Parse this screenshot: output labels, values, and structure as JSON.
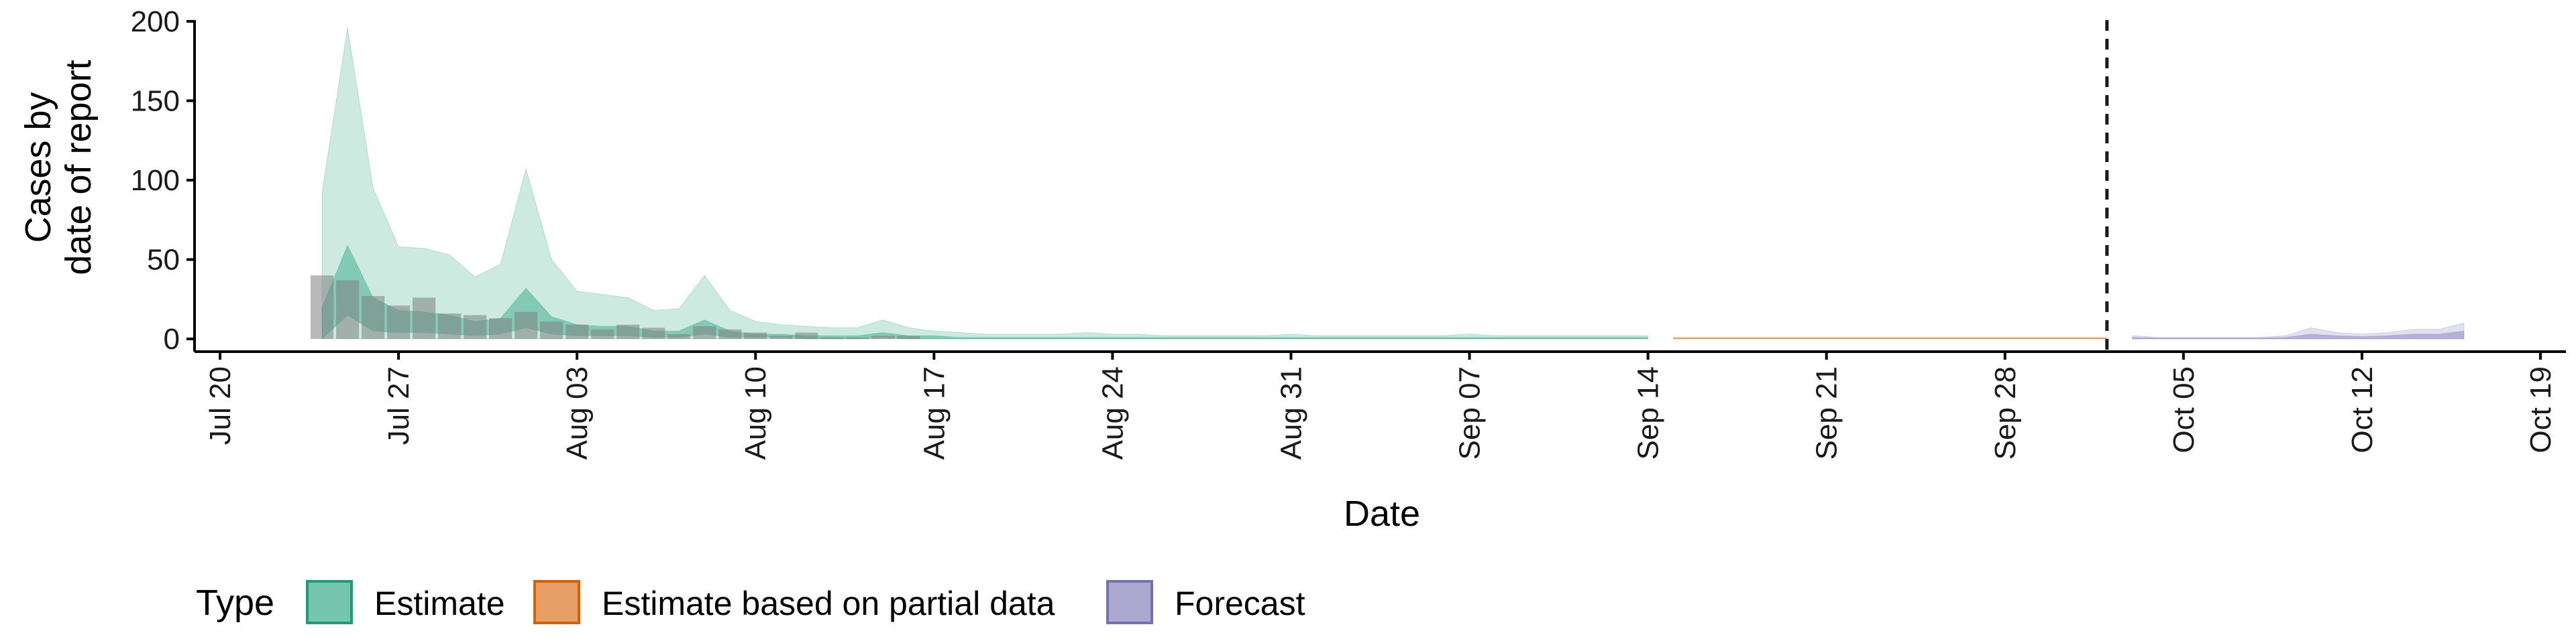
{
  "chart_data": {
    "type": "area",
    "title": "",
    "xlabel": "Date",
    "ylabel_lines": [
      "Cases by",
      "date of report"
    ],
    "x_ticks": [
      {
        "date": "2020-07-20",
        "label": "Jul 20"
      },
      {
        "date": "2020-07-27",
        "label": "Jul 27"
      },
      {
        "date": "2020-08-03",
        "label": "Aug 03"
      },
      {
        "date": "2020-08-10",
        "label": "Aug 10"
      },
      {
        "date": "2020-08-17",
        "label": "Aug 17"
      },
      {
        "date": "2020-08-24",
        "label": "Aug 24"
      },
      {
        "date": "2020-08-31",
        "label": "Aug 31"
      },
      {
        "date": "2020-09-07",
        "label": "Sep 07"
      },
      {
        "date": "2020-09-14",
        "label": "Sep 14"
      },
      {
        "date": "2020-09-21",
        "label": "Sep 21"
      },
      {
        "date": "2020-09-28",
        "label": "Sep 28"
      },
      {
        "date": "2020-10-05",
        "label": "Oct 05"
      },
      {
        "date": "2020-10-12",
        "label": "Oct 12"
      },
      {
        "date": "2020-10-19",
        "label": "Oct 19"
      }
    ],
    "y_ticks": [
      0,
      50,
      100,
      150,
      200
    ],
    "xlim": [
      "2020-07-19",
      "2020-10-20"
    ],
    "ylim": [
      -8,
      205
    ],
    "vline_date": "2020-10-02",
    "colors": {
      "estimate": "#1b9e77",
      "partial": "#d95f02",
      "forecast": "#7570b3",
      "observed": "#808080"
    },
    "legend": {
      "position": "bottom",
      "title": "Type",
      "items": [
        {
          "key": "estimate",
          "label": "Estimate"
        },
        {
          "key": "partial",
          "label": "Estimate based on partial data"
        },
        {
          "key": "forecast",
          "label": "Forecast"
        }
      ]
    },
    "observed": [
      {
        "date": "2020-07-24",
        "value": 40
      },
      {
        "date": "2020-07-25",
        "value": 37
      },
      {
        "date": "2020-07-26",
        "value": 27
      },
      {
        "date": "2020-07-27",
        "value": 21
      },
      {
        "date": "2020-07-28",
        "value": 26
      },
      {
        "date": "2020-07-29",
        "value": 16
      },
      {
        "date": "2020-07-30",
        "value": 15
      },
      {
        "date": "2020-07-31",
        "value": 13
      },
      {
        "date": "2020-08-01",
        "value": 17
      },
      {
        "date": "2020-08-02",
        "value": 11
      },
      {
        "date": "2020-08-03",
        "value": 9
      },
      {
        "date": "2020-08-04",
        "value": 6
      },
      {
        "date": "2020-08-05",
        "value": 9
      },
      {
        "date": "2020-08-06",
        "value": 7
      },
      {
        "date": "2020-08-07",
        "value": 3
      },
      {
        "date": "2020-08-08",
        "value": 8
      },
      {
        "date": "2020-08-09",
        "value": 6
      },
      {
        "date": "2020-08-10",
        "value": 4
      },
      {
        "date": "2020-08-11",
        "value": 2
      },
      {
        "date": "2020-08-12",
        "value": 4
      },
      {
        "date": "2020-08-13",
        "value": 1
      },
      {
        "date": "2020-08-14",
        "value": 1
      },
      {
        "date": "2020-08-15",
        "value": 2
      },
      {
        "date": "2020-08-16",
        "value": 2
      }
    ],
    "series": [
      {
        "key": "estimate",
        "dates": [
          "2020-07-24",
          "2020-07-25",
          "2020-07-26",
          "2020-07-27",
          "2020-07-28",
          "2020-07-29",
          "2020-07-30",
          "2020-07-31",
          "2020-08-01",
          "2020-08-02",
          "2020-08-03",
          "2020-08-04",
          "2020-08-05",
          "2020-08-06",
          "2020-08-07",
          "2020-08-08",
          "2020-08-09",
          "2020-08-10",
          "2020-08-11",
          "2020-08-12",
          "2020-08-13",
          "2020-08-14",
          "2020-08-15",
          "2020-08-16",
          "2020-08-17",
          "2020-08-18",
          "2020-08-19",
          "2020-08-20",
          "2020-08-21",
          "2020-08-22",
          "2020-08-23",
          "2020-08-24",
          "2020-08-25",
          "2020-08-26",
          "2020-08-27",
          "2020-08-28",
          "2020-08-29",
          "2020-08-30",
          "2020-08-31",
          "2020-09-01",
          "2020-09-02",
          "2020-09-03",
          "2020-09-04",
          "2020-09-05",
          "2020-09-06",
          "2020-09-07",
          "2020-09-08",
          "2020-09-09",
          "2020-09-10",
          "2020-09-11",
          "2020-09-12",
          "2020-09-13",
          "2020-09-14"
        ],
        "outer_upper": [
          92,
          196,
          95,
          58,
          57,
          53,
          39,
          47,
          107,
          50,
          30,
          28,
          26,
          18,
          19,
          40,
          18,
          11,
          9,
          8,
          7,
          7,
          12,
          7,
          5,
          4,
          3,
          3,
          3,
          3,
          4,
          3,
          3,
          2,
          2,
          2,
          2,
          2,
          3,
          2,
          2,
          2,
          2,
          2,
          2,
          3,
          2,
          2,
          2,
          2,
          2,
          2,
          2
        ],
        "outer_lower": [
          0,
          0,
          0,
          0,
          0,
          0,
          0,
          0,
          0,
          0,
          0,
          0,
          0,
          0,
          0,
          0,
          0,
          0,
          0,
          0,
          0,
          0,
          0,
          0,
          0,
          0,
          0,
          0,
          0,
          0,
          0,
          0,
          0,
          0,
          0,
          0,
          0,
          0,
          0,
          0,
          0,
          0,
          0,
          0,
          0,
          0,
          0,
          0,
          0,
          0,
          0,
          0,
          0
        ],
        "inner_upper": [
          20,
          59,
          26,
          18,
          17,
          15,
          11,
          13,
          32,
          14,
          9,
          8,
          8,
          5,
          5,
          12,
          5,
          3,
          3,
          2,
          2,
          2,
          4,
          2,
          2,
          1,
          1,
          1,
          1,
          1,
          1,
          1,
          1,
          1,
          1,
          1,
          1,
          1,
          1,
          1,
          1,
          1,
          1,
          1,
          1,
          1,
          1,
          1,
          1,
          1,
          1,
          1,
          1
        ],
        "inner_lower": [
          0,
          15,
          5,
          4,
          4,
          3,
          2,
          3,
          7,
          3,
          2,
          2,
          2,
          1,
          1,
          3,
          1,
          1,
          1,
          0,
          0,
          0,
          1,
          0,
          0,
          0,
          0,
          0,
          0,
          0,
          0,
          0,
          0,
          0,
          0,
          0,
          0,
          0,
          0,
          0,
          0,
          0,
          0,
          0,
          0,
          0,
          0,
          0,
          0,
          0,
          0,
          0,
          0
        ]
      },
      {
        "key": "partial",
        "dates": [
          "2020-09-15",
          "2020-09-17",
          "2020-09-19",
          "2020-09-21",
          "2020-09-23",
          "2020-09-25",
          "2020-09-27",
          "2020-09-29",
          "2020-10-01",
          "2020-10-02"
        ],
        "outer_upper": [
          1,
          1,
          1,
          1,
          1,
          1,
          1,
          1,
          1,
          1
        ],
        "outer_lower": [
          0,
          0,
          0,
          0,
          0,
          0,
          0,
          0,
          0,
          0
        ],
        "inner_upper": [
          0.5,
          0.5,
          0.5,
          0.5,
          0.5,
          0.5,
          0.5,
          0.5,
          0.5,
          0.5
        ],
        "inner_lower": [
          0,
          0,
          0,
          0,
          0,
          0,
          0,
          0,
          0,
          0
        ]
      },
      {
        "key": "forecast",
        "dates": [
          "2020-10-03",
          "2020-10-04",
          "2020-10-06",
          "2020-10-08",
          "2020-10-09",
          "2020-10-10",
          "2020-10-11",
          "2020-10-12",
          "2020-10-13",
          "2020-10-14",
          "2020-10-15",
          "2020-10-16"
        ],
        "outer_upper": [
          2,
          1,
          1,
          1,
          2,
          7,
          4,
          3,
          4,
          6,
          6,
          10
        ],
        "outer_lower": [
          0,
          0,
          0,
          0,
          0,
          0,
          0,
          0,
          0,
          0,
          0,
          0
        ],
        "inner_upper": [
          1,
          0.5,
          0.5,
          0.5,
          1,
          3,
          2,
          1.5,
          2,
          3,
          3,
          5
        ],
        "inner_lower": [
          0,
          0,
          0,
          0,
          0,
          0,
          0,
          0,
          0,
          0,
          0,
          0
        ]
      }
    ]
  }
}
